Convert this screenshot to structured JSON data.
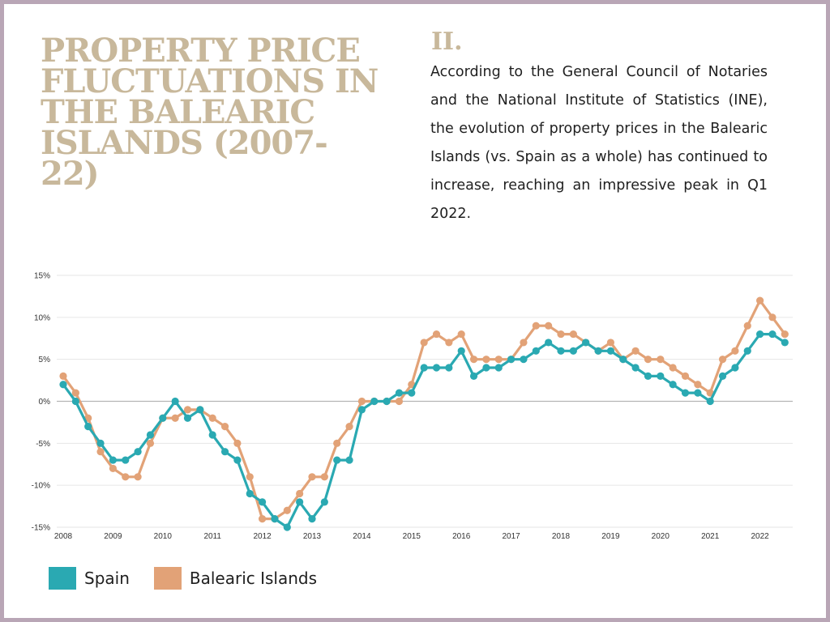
{
  "title": "PROPERTY PRICE FLUCTUATIONS IN THE BALEARIC ISLANDS (2007-22)",
  "section_number": "II.",
  "description": "According to the General Council of Notaries and the National Institute of Statistics (INE), the evolution of property prices in the Balearic Islands (vs. Spain as a whole) has continued to increase, reaching an impressive peak in Q1 2022.",
  "colors": {
    "spain": "#2aa9b2",
    "balearic": "#e2a277",
    "title": "#c8b89b",
    "frame": "#b9a6b6"
  },
  "chart_data": {
    "type": "line",
    "x_tick_labels": [
      "2008",
      "2009",
      "2010",
      "2011",
      "2012",
      "2013",
      "2014",
      "2015",
      "2016",
      "2017",
      "2018",
      "2019",
      "2020",
      "2021",
      "2022"
    ],
    "y_tick_labels": [
      "15%",
      "10%",
      "5%",
      "0%",
      "-5%",
      "-10%",
      "-15%"
    ],
    "ylim": [
      -15,
      15
    ],
    "grid": true,
    "legend_position": "bottom-left",
    "series": [
      {
        "name": "Spain",
        "color": "#2aa9b2",
        "values": [
          2,
          0,
          -3,
          -5,
          -7,
          -7,
          -6,
          -4,
          -2,
          0,
          -2,
          -1,
          -4,
          -6,
          -7,
          -11,
          -12,
          -14,
          -15,
          -12,
          -14,
          -12,
          -7,
          -7,
          -1,
          0,
          0,
          1,
          1,
          4,
          4,
          4,
          6,
          3,
          4,
          4,
          5,
          5,
          6,
          7,
          6,
          6,
          7,
          6,
          6,
          5,
          4,
          3,
          3,
          2,
          1,
          1,
          0,
          3,
          4,
          6,
          8,
          8,
          7
        ]
      },
      {
        "name": "Balearic Islands",
        "color": "#e2a277",
        "values": [
          3,
          1,
          -2,
          -6,
          -8,
          -9,
          -9,
          -5,
          -2,
          -2,
          -1,
          -1,
          -2,
          -3,
          -5,
          -9,
          -14,
          -14,
          -13,
          -11,
          -9,
          -9,
          -5,
          -3,
          0,
          0,
          0,
          0,
          2,
          7,
          8,
          7,
          8,
          5,
          5,
          5,
          5,
          7,
          9,
          9,
          8,
          8,
          7,
          6,
          7,
          5,
          6,
          5,
          5,
          4,
          3,
          2,
          1,
          5,
          6,
          9,
          12,
          10,
          8
        ]
      }
    ]
  }
}
